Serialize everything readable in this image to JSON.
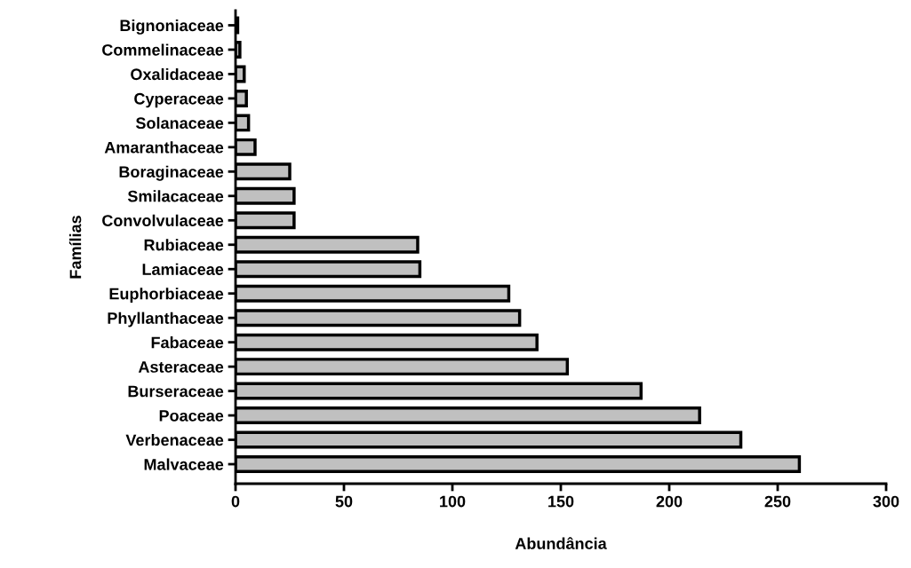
{
  "chart_data": {
    "type": "bar",
    "orientation": "horizontal",
    "xlabel": "Abundância",
    "ylabel": "Famílias",
    "categories": [
      "Bignoniaceae",
      "Commelinaceae",
      "Oxalidaceae",
      "Cyperaceae",
      "Solanaceae",
      "Amaranthaceae",
      "Boraginaceae",
      "Smilacaceae",
      "Convolvulaceae",
      "Rubiaceae",
      "Lamiaceae",
      "Euphorbiaceae",
      "Phyllanthaceae",
      "Fabaceae",
      "Asteraceae",
      "Burseraceae",
      "Poaceae",
      "Verbenaceae",
      "Malvaceae"
    ],
    "values": [
      1,
      2,
      4,
      5,
      6,
      9,
      25,
      27,
      27,
      84,
      85,
      126,
      131,
      139,
      153,
      187,
      214,
      233,
      260
    ],
    "color": "#c0c0c0",
    "xlim": [
      0,
      300
    ],
    "xticks": [
      0,
      50,
      100,
      150,
      200,
      250,
      300
    ],
    "grid": false,
    "legend": false
  }
}
